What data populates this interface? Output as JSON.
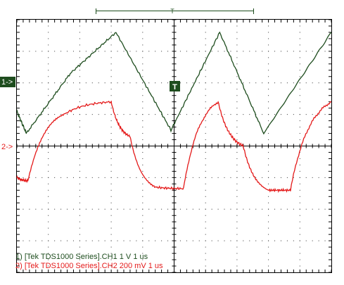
{
  "trigger_marker": "T",
  "channels": {
    "ch1": {
      "marker": "1->",
      "color": "#1e4d1e",
      "caption": "1) [Tek TDS1000 Series].CH1  1  V   1 us"
    },
    "ch2": {
      "marker": "2->",
      "color": "#e41a1a",
      "caption": "2) [Tek TDS1000 Series].CH2  200 mV  1 us"
    }
  },
  "chart_data": {
    "type": "line",
    "x_divisions": 10,
    "y_divisions": 8,
    "grid": true,
    "x_unit_per_div": "1 us",
    "series": [
      {
        "name": "CH1",
        "volts_per_div": "1 V",
        "shape": "triangle",
        "x": [
          0,
          0.3,
          1.7,
          3.15,
          4.9,
          6.45,
          7.85,
          10
        ],
        "y": [
          -0.9,
          -1.6,
          0.3,
          1.6,
          -1.5,
          1.6,
          -1.6,
          1.6
        ]
      },
      {
        "name": "CH2",
        "volts_per_div": "200 mV",
        "shape": "rc-charging",
        "x": [
          0,
          0.35,
          1.5,
          3.0,
          3.6,
          4.4,
          5.3,
          6.4,
          7.2,
          8.0,
          8.7,
          10
        ],
        "y": [
          -1.0,
          -1.1,
          1.0,
          1.4,
          0.3,
          -1.3,
          -1.35,
          1.4,
          0.0,
          -1.4,
          -1.4,
          1.4
        ]
      }
    ]
  }
}
